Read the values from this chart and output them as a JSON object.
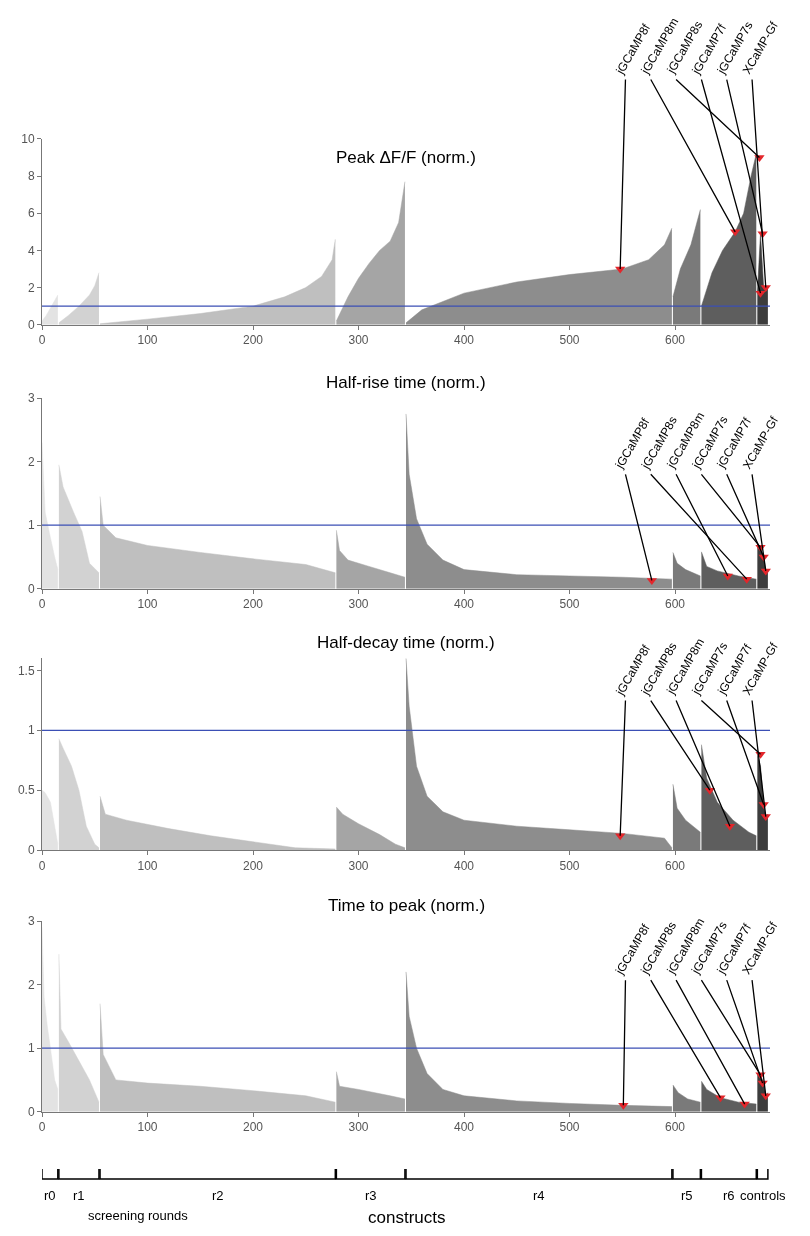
{
  "chart_data": [
    {
      "type": "area",
      "title": "Peak ΔF/F (norm.)",
      "xlim": [
        0,
        690
      ],
      "xticks": [
        0,
        100,
        200,
        300,
        400,
        500,
        600
      ],
      "ylim": [
        0,
        10
      ],
      "yticks": [
        0,
        2,
        4,
        6,
        8,
        10
      ],
      "series": [
        {
          "color": "#e3e3e3",
          "x": [
            0,
            4,
            8,
            12,
            15
          ],
          "values": [
            0.2,
            0.5,
            0.9,
            1.3,
            1.6
          ]
        },
        {
          "color": "#d2d2d2",
          "x": [
            16,
            25,
            35,
            45,
            50,
            54
          ],
          "values": [
            0.1,
            0.5,
            1.0,
            1.6,
            2.1,
            2.8
          ]
        },
        {
          "color": "#bfbfbf",
          "x": [
            55,
            100,
            150,
            200,
            230,
            250,
            265,
            275,
            278
          ],
          "values": [
            0.05,
            0.3,
            0.6,
            1.0,
            1.5,
            2.0,
            2.6,
            3.5,
            4.6
          ]
        },
        {
          "color": "#a5a5a5",
          "x": [
            279,
            290,
            300,
            310,
            320,
            330,
            338,
            344
          ],
          "values": [
            0.2,
            1.5,
            2.5,
            3.3,
            4.0,
            4.5,
            5.5,
            7.7
          ]
        },
        {
          "color": "#8d8d8d",
          "x": [
            345,
            360,
            400,
            450,
            500,
            550,
            575,
            590,
            597
          ],
          "values": [
            0.1,
            0.8,
            1.7,
            2.3,
            2.7,
            3.0,
            3.5,
            4.3,
            5.2
          ]
        },
        {
          "color": "#7a7a7a",
          "x": [
            598,
            605,
            615,
            624
          ],
          "values": [
            1.5,
            3.0,
            4.3,
            6.2
          ]
        },
        {
          "color": "#5e5e5e",
          "x": [
            625,
            635,
            645,
            657,
            665,
            672,
            677
          ],
          "values": [
            1.0,
            2.8,
            4.0,
            5.0,
            6.0,
            8.0,
            9.2
          ]
        },
        {
          "color": "#3c3c3c",
          "x": [
            678,
            681,
            684,
            686,
            688
          ],
          "values": [
            1.7,
            4.9,
            2.0,
            1.8,
            2.0
          ]
        },
        {
          "type": "scatter",
          "marker": "triangle",
          "color": "#e3262b",
          "x": [
            548,
            657,
            680,
            681,
            683,
            686
          ],
          "values": [
            3.0,
            5.0,
            9.0,
            1.7,
            4.9,
            2.0
          ]
        }
      ],
      "ref_lines": [
        {
          "axis": "y",
          "value": 1,
          "color": "#3b4fb5"
        }
      ],
      "annotations": [
        {
          "text": "jGCaMP8f",
          "x": 548,
          "y": 3.0
        },
        {
          "text": "jGCaMP8m",
          "x": 657,
          "y": 5.0
        },
        {
          "text": "jGCaMP8s",
          "x": 680,
          "y": 9.0
        },
        {
          "text": "jGCaMP7f",
          "x": 681,
          "y": 1.7
        },
        {
          "text": "jGCaMP7s",
          "x": 683,
          "y": 4.9
        },
        {
          "text": "XCaMP-Gf",
          "x": 686,
          "y": 2.0
        }
      ]
    },
    {
      "type": "area",
      "title": "Half-rise time (norm.)",
      "xlim": [
        0,
        690
      ],
      "xticks": [
        0,
        100,
        200,
        300,
        400,
        500,
        600
      ],
      "ylim": [
        0,
        3
      ],
      "yticks": [
        0,
        1,
        2,
        3
      ],
      "series": [
        {
          "color": "#e3e3e3",
          "x": [
            0,
            3,
            8,
            12,
            15
          ],
          "values": [
            2.3,
            1.2,
            0.8,
            0.5,
            0.3
          ]
        },
        {
          "color": "#d2d2d2",
          "x": [
            16,
            20,
            30,
            38,
            45,
            54
          ],
          "values": [
            1.95,
            1.6,
            1.2,
            0.9,
            0.4,
            0.25
          ]
        },
        {
          "color": "#bfbfbf",
          "x": [
            55,
            58,
            70,
            100,
            150,
            200,
            250,
            278
          ],
          "values": [
            1.45,
            1.0,
            0.8,
            0.68,
            0.57,
            0.47,
            0.38,
            0.25
          ]
        },
        {
          "color": "#a5a5a5",
          "x": [
            279,
            282,
            290,
            310,
            330,
            344
          ],
          "values": [
            0.92,
            0.6,
            0.45,
            0.35,
            0.25,
            0.18
          ]
        },
        {
          "color": "#8d8d8d",
          "x": [
            345,
            348,
            355,
            365,
            380,
            400,
            450,
            500,
            550,
            597
          ],
          "values": [
            2.75,
            1.8,
            1.1,
            0.7,
            0.45,
            0.3,
            0.22,
            0.2,
            0.18,
            0.15
          ]
        },
        {
          "color": "#7a7a7a",
          "x": [
            598,
            602,
            610,
            624
          ],
          "values": [
            0.57,
            0.4,
            0.3,
            0.2
          ]
        },
        {
          "color": "#5e5e5e",
          "x": [
            625,
            630,
            640,
            660,
            677
          ],
          "values": [
            0.58,
            0.35,
            0.28,
            0.2,
            0.15
          ]
        },
        {
          "color": "#3c3c3c",
          "x": [
            678,
            681,
            684,
            686,
            688
          ],
          "values": [
            0.7,
            0.65,
            0.5,
            0.28,
            0.3
          ]
        },
        {
          "type": "scatter",
          "marker": "triangle",
          "color": "#e3262b",
          "x": [
            578,
            668,
            650,
            681,
            684,
            686
          ],
          "values": [
            0.13,
            0.15,
            0.2,
            0.65,
            0.5,
            0.28
          ]
        }
      ],
      "ref_lines": [
        {
          "axis": "y",
          "value": 1,
          "color": "#3b4fb5"
        }
      ],
      "annotations": [
        {
          "text": "jGCaMP8f",
          "x": 578,
          "y": 0.13
        },
        {
          "text": "jGCaMP8s",
          "x": 668,
          "y": 0.15
        },
        {
          "text": "jGCaMP8m",
          "x": 650,
          "y": 0.2
        },
        {
          "text": "jGCaMP7s",
          "x": 681,
          "y": 0.65
        },
        {
          "text": "jGCaMP7f",
          "x": 684,
          "y": 0.5
        },
        {
          "text": "XCaMP-Gf",
          "x": 686,
          "y": 0.28
        }
      ]
    },
    {
      "type": "area",
      "title": "Half-decay time (norm.)",
      "xlim": [
        0,
        690
      ],
      "xticks": [
        0,
        100,
        200,
        300,
        400,
        500,
        600
      ],
      "ylim": [
        0,
        1.6
      ],
      "yticks": [
        0,
        0.5,
        1,
        1.5
      ],
      "series": [
        {
          "color": "#e3e3e3",
          "x": [
            0,
            3,
            8,
            12,
            15
          ],
          "values": [
            0.5,
            0.48,
            0.4,
            0.2,
            0.05
          ]
        },
        {
          "color": "#d2d2d2",
          "x": [
            16,
            20,
            28,
            35,
            42,
            50,
            54
          ],
          "values": [
            0.93,
            0.85,
            0.7,
            0.5,
            0.2,
            0.05,
            0.02
          ]
        },
        {
          "color": "#bfbfbf",
          "x": [
            55,
            60,
            80,
            120,
            160,
            200,
            240,
            278
          ],
          "values": [
            0.45,
            0.3,
            0.25,
            0.18,
            0.12,
            0.07,
            0.02,
            0.01
          ]
        },
        {
          "color": "#a5a5a5",
          "x": [
            279,
            285,
            300,
            320,
            335,
            344
          ],
          "values": [
            0.36,
            0.3,
            0.22,
            0.13,
            0.05,
            0.02
          ]
        },
        {
          "color": "#8d8d8d",
          "x": [
            345,
            348,
            355,
            365,
            380,
            400,
            450,
            500,
            550,
            590,
            597
          ],
          "values": [
            1.6,
            1.2,
            0.7,
            0.45,
            0.32,
            0.25,
            0.2,
            0.17,
            0.14,
            0.1,
            0.02
          ]
        },
        {
          "color": "#7a7a7a",
          "x": [
            598,
            602,
            610,
            624
          ],
          "values": [
            0.55,
            0.35,
            0.25,
            0.15
          ]
        },
        {
          "color": "#5e5e5e",
          "x": [
            625,
            630,
            640,
            655,
            670,
            677
          ],
          "values": [
            0.88,
            0.6,
            0.4,
            0.25,
            0.15,
            0.12
          ]
        },
        {
          "color": "#3c3c3c",
          "x": [
            678,
            681,
            684,
            686,
            688
          ],
          "values": [
            0.8,
            0.7,
            0.38,
            0.28,
            0.3
          ]
        },
        {
          "type": "scatter",
          "marker": "triangle",
          "color": "#e3262b",
          "x": [
            548,
            633,
            652,
            681,
            684,
            686
          ],
          "values": [
            0.12,
            0.5,
            0.2,
            0.8,
            0.38,
            0.28
          ]
        }
      ],
      "ref_lines": [
        {
          "axis": "y",
          "value": 1,
          "color": "#3b4fb5"
        }
      ],
      "annotations": [
        {
          "text": "jGCaMP8f",
          "x": 548,
          "y": 0.12
        },
        {
          "text": "jGCaMP8s",
          "x": 633,
          "y": 0.5
        },
        {
          "text": "jGCaMP8m",
          "x": 652,
          "y": 0.2
        },
        {
          "text": "jGCaMP7s",
          "x": 681,
          "y": 0.8
        },
        {
          "text": "jGCaMP7f",
          "x": 684,
          "y": 0.38
        },
        {
          "text": "XCaMP-Gf",
          "x": 686,
          "y": 0.28
        }
      ]
    },
    {
      "type": "area",
      "title": "Time to peak (norm.)",
      "xlabel": "constructs",
      "xlim": [
        0,
        690
      ],
      "xticks": [
        0,
        100,
        200,
        300,
        400,
        500,
        600
      ],
      "ylim": [
        0,
        3
      ],
      "yticks": [
        0,
        1,
        2,
        3
      ],
      "series": [
        {
          "color": "#e3e3e3",
          "x": [
            0,
            2,
            5,
            8,
            12,
            15
          ],
          "values": [
            2.9,
            1.8,
            1.35,
            1.0,
            0.5,
            0.35
          ]
        },
        {
          "color": "#d2d2d2",
          "x": [
            16,
            18,
            25,
            35,
            45,
            54
          ],
          "values": [
            2.48,
            1.3,
            1.1,
            0.8,
            0.5,
            0.15
          ]
        },
        {
          "color": "#bfbfbf",
          "x": [
            55,
            58,
            70,
            100,
            150,
            200,
            250,
            278
          ],
          "values": [
            1.7,
            0.9,
            0.5,
            0.45,
            0.4,
            0.33,
            0.25,
            0.15
          ]
        },
        {
          "color": "#a5a5a5",
          "x": [
            279,
            282,
            300,
            330,
            344
          ],
          "values": [
            0.63,
            0.4,
            0.35,
            0.25,
            0.2
          ]
        },
        {
          "color": "#8d8d8d",
          "x": [
            345,
            348,
            355,
            365,
            380,
            400,
            450,
            500,
            550,
            597
          ],
          "values": [
            2.2,
            1.5,
            1.0,
            0.6,
            0.35,
            0.25,
            0.17,
            0.13,
            0.1,
            0.08
          ]
        },
        {
          "color": "#7a7a7a",
          "x": [
            598,
            603,
            612,
            624
          ],
          "values": [
            0.42,
            0.3,
            0.2,
            0.15
          ]
        },
        {
          "color": "#5e5e5e",
          "x": [
            625,
            630,
            643,
            660,
            677
          ],
          "values": [
            0.48,
            0.35,
            0.22,
            0.15,
            0.12
          ]
        },
        {
          "color": "#3c3c3c",
          "x": [
            678,
            681,
            684,
            686,
            688
          ],
          "values": [
            0.6,
            0.58,
            0.45,
            0.25,
            0.3
          ]
        },
        {
          "type": "scatter",
          "marker": "triangle",
          "color": "#e3262b",
          "x": [
            551,
            643,
            666,
            681,
            683,
            686
          ],
          "values": [
            0.1,
            0.22,
            0.12,
            0.58,
            0.45,
            0.25
          ]
        }
      ],
      "ref_lines": [
        {
          "axis": "y",
          "value": 1,
          "color": "#3b4fb5"
        }
      ],
      "annotations": [
        "r0",
        "r1",
        "r2",
        "r3",
        "r4",
        "r5",
        "r6",
        "controls",
        "screening rounds",
        {
          "text": "jGCaMP8f",
          "x": 551,
          "y": 0.1
        },
        {
          "text": "jGCaMP8s",
          "x": 643,
          "y": 0.22
        },
        {
          "text": "jGCaMP8m",
          "x": 666,
          "y": 0.12
        },
        {
          "text": "jGCaMP7s",
          "x": 681,
          "y": 0.58
        },
        {
          "text": "jGCaMP7f",
          "x": 683,
          "y": 0.45
        },
        {
          "text": "XCaMP-Gf",
          "x": 686,
          "y": 0.25
        }
      ]
    }
  ]
}
